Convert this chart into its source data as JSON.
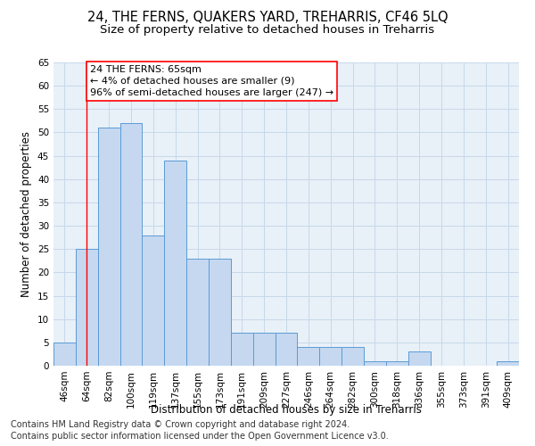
{
  "title1": "24, THE FERNS, QUAKERS YARD, TREHARRIS, CF46 5LQ",
  "title2": "Size of property relative to detached houses in Treharris",
  "xlabel": "Distribution of detached houses by size in Treharris",
  "ylabel": "Number of detached properties",
  "categories": [
    "46sqm",
    "64sqm",
    "82sqm",
    "100sqm",
    "119sqm",
    "137sqm",
    "155sqm",
    "173sqm",
    "191sqm",
    "209sqm",
    "227sqm",
    "246sqm",
    "264sqm",
    "282sqm",
    "300sqm",
    "318sqm",
    "336sqm",
    "355sqm",
    "373sqm",
    "391sqm",
    "409sqm"
  ],
  "values": [
    5,
    25,
    51,
    52,
    28,
    44,
    23,
    23,
    7,
    7,
    7,
    4,
    4,
    4,
    1,
    1,
    3,
    0,
    0,
    0,
    1
  ],
  "bar_color": "#c5d8f0",
  "bar_edgecolor": "#5b9bd5",
  "bar_linewidth": 0.7,
  "redline_x": 1.0,
  "annotation_line1": "24 THE FERNS: 65sqm",
  "annotation_line2": "← 4% of detached houses are smaller (9)",
  "annotation_line3": "96% of semi-detached houses are larger (247) →",
  "annotation_box_color": "white",
  "annotation_box_edgecolor": "red",
  "redline_color": "red",
  "redline_linewidth": 1.0,
  "ylim": [
    0,
    65
  ],
  "yticks": [
    0,
    5,
    10,
    15,
    20,
    25,
    30,
    35,
    40,
    45,
    50,
    55,
    60,
    65
  ],
  "grid_color": "#c8d8ea",
  "background_color": "#e8f0f8",
  "footer1": "Contains HM Land Registry data © Crown copyright and database right 2024.",
  "footer2": "Contains public sector information licensed under the Open Government Licence v3.0.",
  "title1_fontsize": 10.5,
  "title2_fontsize": 9.5,
  "xlabel_fontsize": 8.5,
  "ylabel_fontsize": 8.5,
  "tick_fontsize": 7.5,
  "annotation_fontsize": 8,
  "footer_fontsize": 7
}
